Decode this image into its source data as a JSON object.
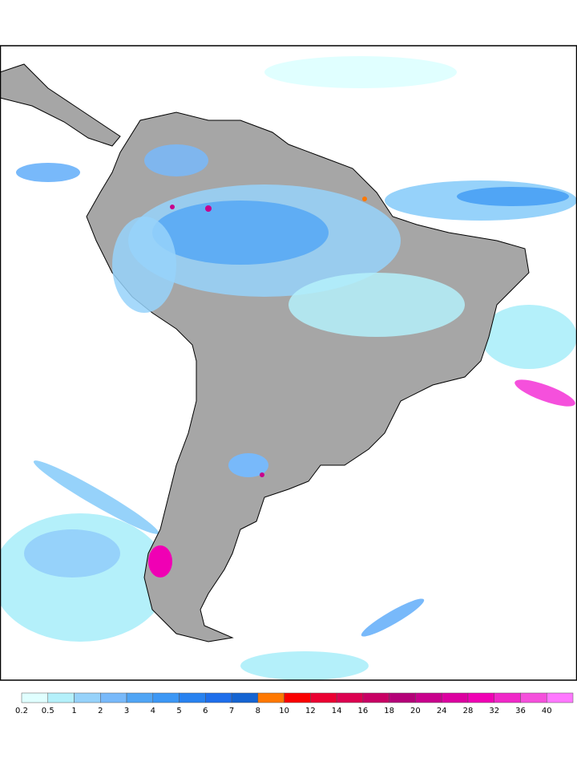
{
  "legend": {
    "labels": [
      0.2,
      0.5,
      1,
      2,
      3,
      4,
      5,
      6,
      7,
      8,
      10,
      12,
      14,
      16,
      18,
      20,
      24,
      28,
      32,
      36,
      40
    ],
    "colors": [
      "#e0ffff",
      "#b4f0fa",
      "#96d2fa",
      "#78b9fa",
      "#50a5f5",
      "#3c97f5",
      "#2882f0",
      "#1e6eeb",
      "#1464d2",
      "#ff7800",
      "#fa0000",
      "#eb0032",
      "#dc0050",
      "#c80064",
      "#b40078",
      "#c8008c",
      "#dc00a0",
      "#f000b4",
      "#f028c8",
      "#f550dc",
      "#ff78ff"
    ]
  }
}
